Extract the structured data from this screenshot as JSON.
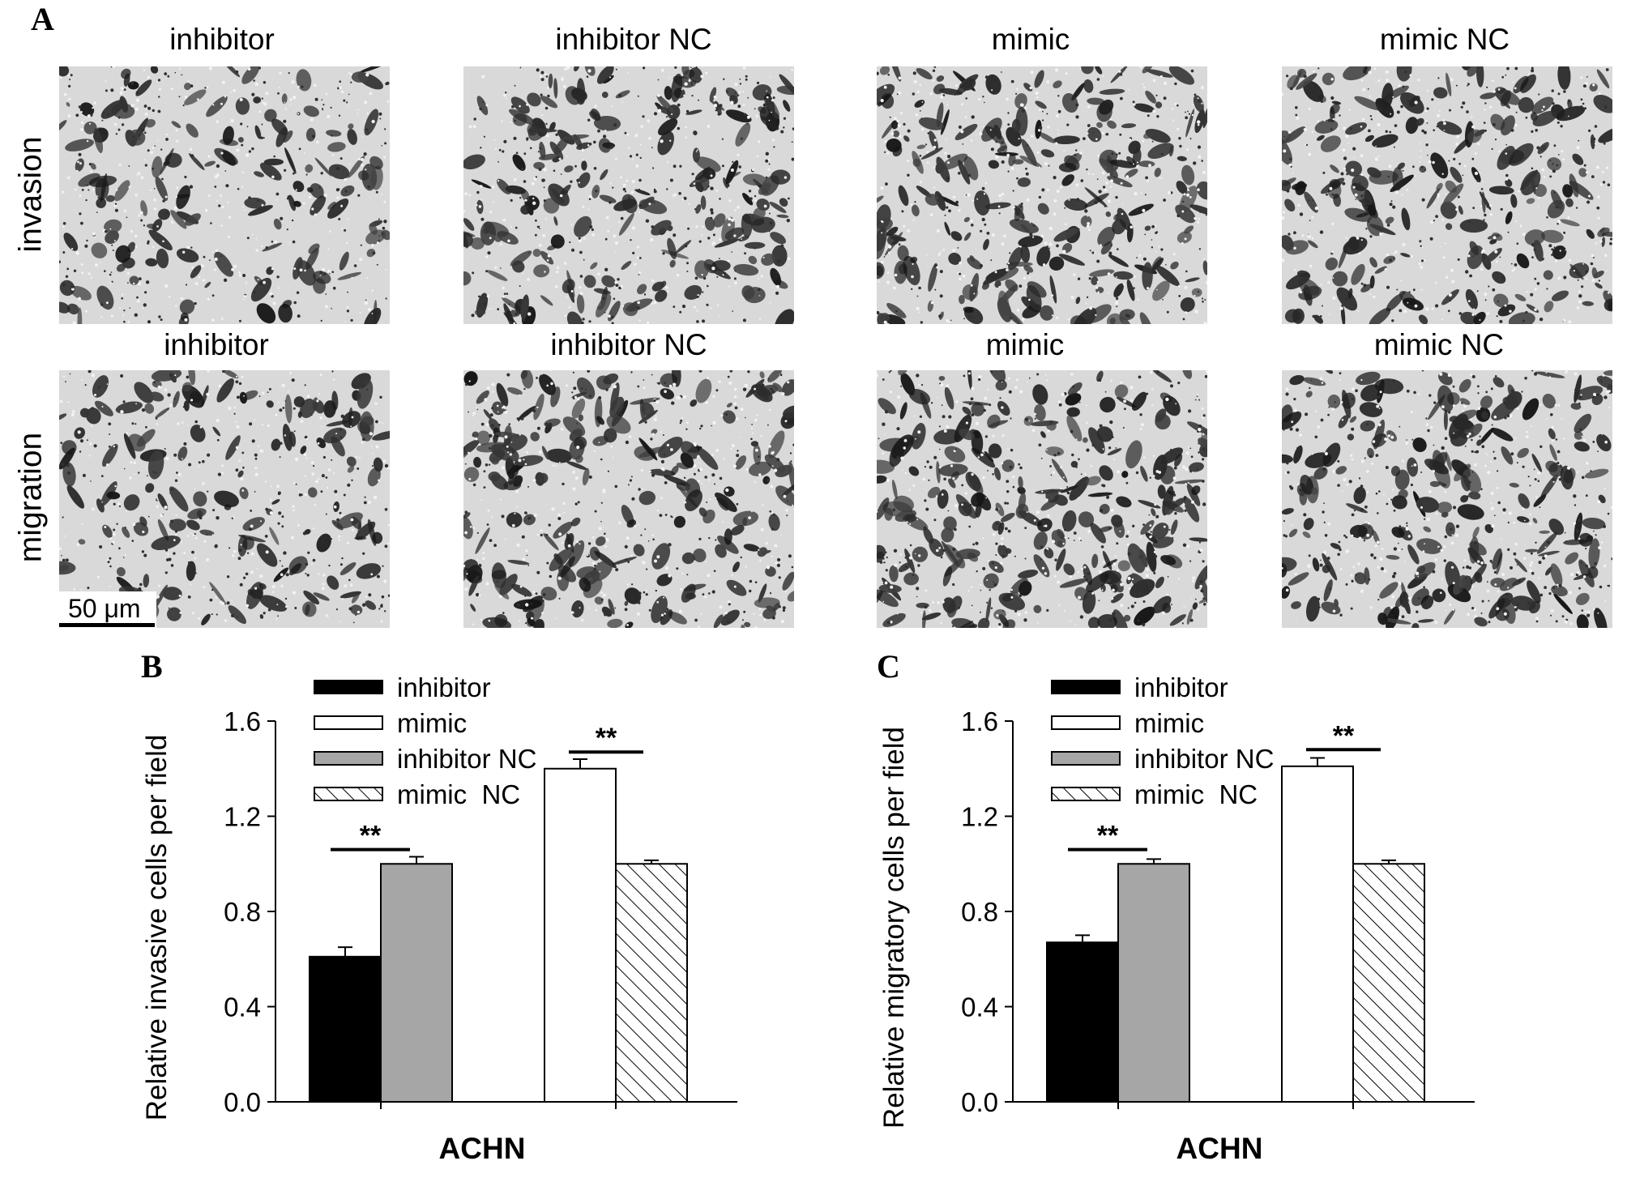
{
  "figure": {
    "panel_a_letter": "A",
    "panel_b_letter": "B",
    "panel_c_letter": "C",
    "column_labels_top": [
      "inhibitor",
      "inhibitor NC",
      "mimic",
      "mimic NC"
    ],
    "column_labels_bottom": [
      "inhibitor",
      "inhibitor NC",
      "mimic",
      "mimic NC"
    ],
    "row_labels": [
      "invasion",
      "migration"
    ],
    "scale_bar": "50 μm"
  },
  "chart_data": [
    {
      "type": "bar",
      "panel": "B",
      "xlabel": "ACHN",
      "ylabel": "Relative invasive cells per field",
      "ylim": [
        0,
        1.6
      ],
      "yticks": [
        "0.0",
        "0.4",
        "0.8",
        "1.2",
        "1.6"
      ],
      "legend_position": "top-left",
      "legend": [
        "inhibitor",
        "mimic",
        "inhibitor NC",
        "mimic  NC"
      ],
      "bars": [
        {
          "name": "inhibitor",
          "value": 0.61,
          "error": 0.04,
          "fill": "#000000"
        },
        {
          "name": "inhibitor NC",
          "value": 1.0,
          "error": 0.03,
          "fill": "#a6a6a6"
        },
        {
          "name": "mimic",
          "value": 1.4,
          "error": 0.04,
          "fill": "#ffffff"
        },
        {
          "name": "mimic  NC",
          "value": 1.0,
          "error": 0.015,
          "fill": "hatch"
        }
      ],
      "significance": [
        "**",
        "**"
      ]
    },
    {
      "type": "bar",
      "panel": "C",
      "xlabel": "ACHN",
      "ylabel": "Relative migratory cells per field",
      "ylim": [
        0,
        1.6
      ],
      "yticks": [
        "0.0",
        "0.4",
        "0.8",
        "1.2",
        "1.6"
      ],
      "legend_position": "top-left",
      "legend": [
        "inhibitor",
        "mimic",
        "inhibitor NC",
        "mimic  NC"
      ],
      "bars": [
        {
          "name": "inhibitor",
          "value": 0.67,
          "error": 0.03,
          "fill": "#000000"
        },
        {
          "name": "inhibitor NC",
          "value": 1.0,
          "error": 0.02,
          "fill": "#a6a6a6"
        },
        {
          "name": "mimic",
          "value": 1.41,
          "error": 0.035,
          "fill": "#ffffff"
        },
        {
          "name": "mimic  NC",
          "value": 1.0,
          "error": 0.015,
          "fill": "hatch"
        }
      ],
      "significance": [
        "**",
        "**"
      ]
    }
  ]
}
